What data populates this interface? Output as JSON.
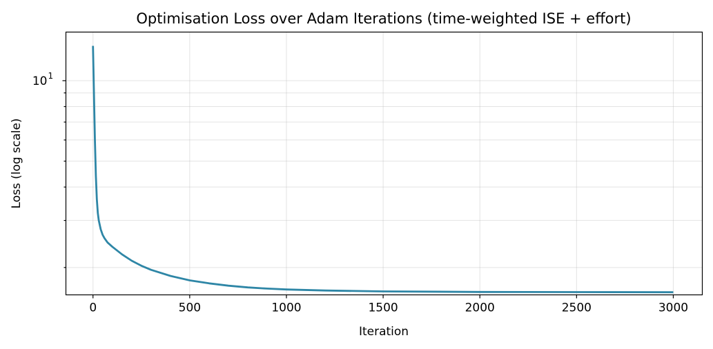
{
  "chart_data": {
    "type": "line",
    "title": "Optimisation Loss over Adam Iterations (time-weighted ISE + effort)",
    "xlabel": "Iteration",
    "ylabel": "Loss (log scale)",
    "xlim": [
      -140,
      3150
    ],
    "ylim": [
      1.58,
      15.2
    ],
    "yscale": "log",
    "grid": true,
    "x_ticks": [
      0,
      500,
      1000,
      1500,
      2000,
      2500,
      3000
    ],
    "x_tick_labels": [
      "0",
      "500",
      "1000",
      "1500",
      "2000",
      "2500",
      "3000"
    ],
    "y_major_ticks": [
      10
    ],
    "y_major_tick_base": "10",
    "y_major_tick_exponent": "1",
    "y_minor_ticks": [
      2,
      3,
      4,
      5,
      6,
      7,
      8,
      9
    ],
    "series": [
      {
        "color": "#2e86a6",
        "x": [
          0,
          5,
          10,
          15,
          20,
          25,
          30,
          40,
          50,
          60,
          75,
          100,
          150,
          200,
          250,
          300,
          400,
          500,
          600,
          700,
          800,
          900,
          1000,
          1200,
          1500,
          2000,
          2500,
          3000
        ],
        "y": [
          13.5,
          9.0,
          6.0,
          4.4,
          3.6,
          3.2,
          3.0,
          2.78,
          2.65,
          2.57,
          2.48,
          2.39,
          2.24,
          2.12,
          2.03,
          1.96,
          1.86,
          1.79,
          1.745,
          1.71,
          1.685,
          1.668,
          1.655,
          1.64,
          1.628,
          1.62,
          1.618,
          1.616
        ]
      }
    ]
  }
}
